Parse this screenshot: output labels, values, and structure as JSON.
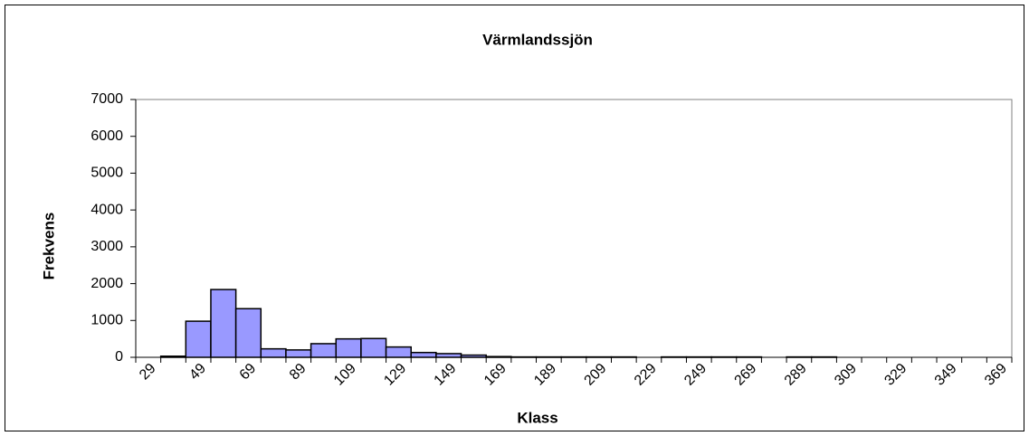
{
  "chart_data": {
    "type": "bar",
    "title": "Värmlandssjön",
    "x_label": "Klass",
    "y_label": "Frekvens",
    "categories": [
      "29",
      null,
      "49",
      null,
      "69",
      null,
      "89",
      null,
      "109",
      null,
      "129",
      null,
      "149",
      null,
      "169",
      null,
      "189",
      null,
      "209",
      null,
      "229",
      null,
      "249",
      null,
      "269",
      null,
      "289",
      null,
      "309",
      null,
      "329",
      null,
      "349",
      null,
      "369"
    ],
    "values": [
      0,
      30,
      980,
      1840,
      1320,
      230,
      200,
      370,
      500,
      510,
      280,
      130,
      100,
      60,
      20,
      10,
      10,
      10,
      10,
      10,
      0,
      10,
      10,
      10,
      10,
      0,
      10,
      10,
      0,
      0,
      0,
      0,
      0,
      0,
      0
    ],
    "color": "#9999ff",
    "ylim": [
      0,
      7000
    ],
    "yticks": [
      0,
      1000,
      2000,
      3000,
      4000,
      5000,
      6000,
      7000
    ],
    "grid": false
  }
}
